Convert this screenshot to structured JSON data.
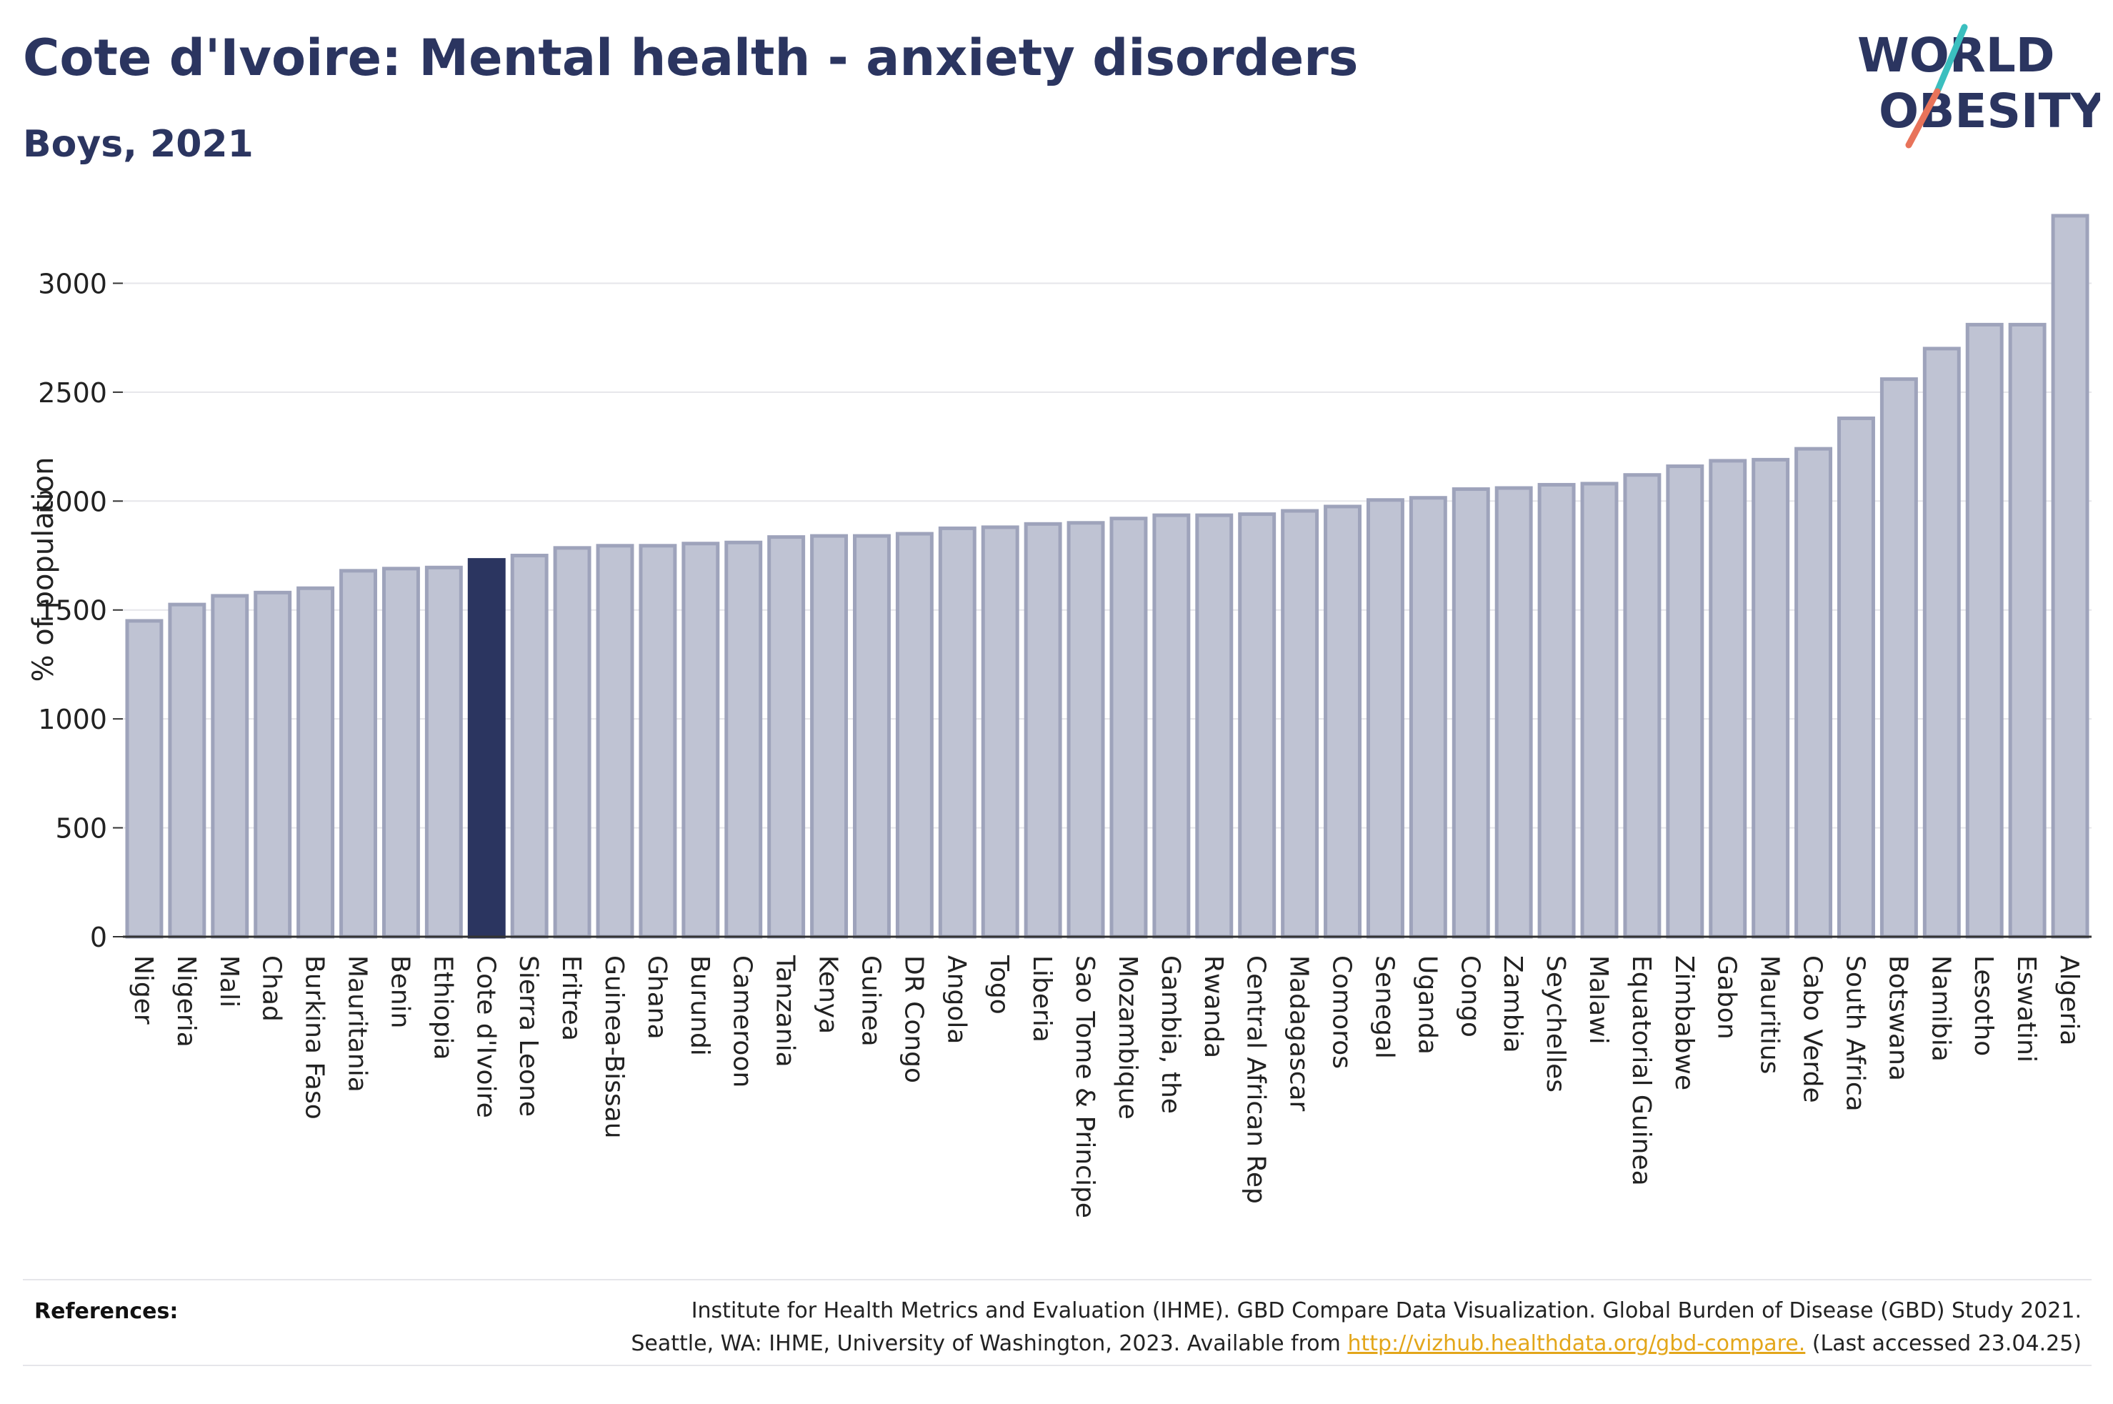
{
  "title": "Cote d'Ivoire: Mental health - anxiety disorders",
  "subtitle": "Boys, 2021",
  "logo": {
    "line1": "WORLD",
    "line2": "OBESITY",
    "colors": {
      "text": "#2b3560",
      "slash_top": "#3bbfbf",
      "slash_bottom": "#e8735a"
    }
  },
  "colors": {
    "bar": "#bfc3d3",
    "bar_outline": "#9ea3bb",
    "highlight": "#2b3560",
    "grid": "#e6e6ea",
    "axis": "#333333",
    "text": "#2b3560"
  },
  "chart_data": {
    "type": "bar",
    "ylabel": "% of population",
    "ylim": [
      0,
      3300
    ],
    "yticks": [
      0,
      500,
      1000,
      1500,
      2000,
      2500,
      3000
    ],
    "grid": true,
    "highlight": "Cote d'Ivoire",
    "categories": [
      "Niger",
      "Nigeria",
      "Mali",
      "Chad",
      "Burkina Faso",
      "Mauritania",
      "Benin",
      "Ethiopia",
      "Cote d'Ivoire",
      "Sierra Leone",
      "Eritrea",
      "Guinea-Bissau",
      "Ghana",
      "Burundi",
      "Cameroon",
      "Tanzania",
      "Kenya",
      "Guinea",
      "DR Congo",
      "Angola",
      "Togo",
      "Liberia",
      "Sao Tome & Principe",
      "Mozambique",
      "Gambia, the",
      "Rwanda",
      "Central African Rep",
      "Madagascar",
      "Comoros",
      "Senegal",
      "Uganda",
      "Congo",
      "Zambia",
      "Seychelles",
      "Malawi",
      "Equatorial Guinea",
      "Zimbabwe",
      "Gabon",
      "Mauritius",
      "Cabo Verde",
      "South Africa",
      "Botswana",
      "Namibia",
      "Lesotho",
      "Eswatini",
      "Algeria"
    ],
    "values": [
      1450,
      1525,
      1565,
      1580,
      1600,
      1680,
      1690,
      1695,
      1730,
      1750,
      1785,
      1795,
      1795,
      1805,
      1810,
      1835,
      1840,
      1840,
      1850,
      1875,
      1880,
      1895,
      1900,
      1920,
      1935,
      1935,
      1940,
      1955,
      1975,
      2005,
      2015,
      2055,
      2060,
      2075,
      2080,
      2120,
      2160,
      2185,
      2190,
      2240,
      2380,
      2560,
      2700,
      2810,
      2810,
      3310
    ]
  },
  "references": {
    "label": "References:",
    "line1": "Institute for Health Metrics and Evaluation (IHME). GBD Compare Data Visualization. Global Burden of Disease (GBD) Study 2021.",
    "line2_before": "Seattle, WA: IHME, University of Washington, 2023. Available from",
    "link": "http://vizhub.healthdata.org/gbd-compare.",
    "line2_after": "(Last accessed 23.04.25)"
  }
}
